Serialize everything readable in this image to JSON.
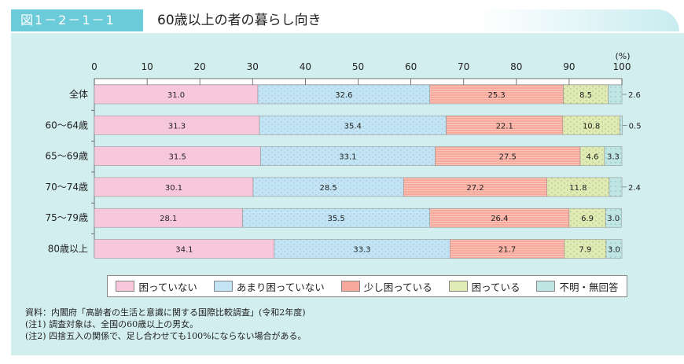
{
  "header": {
    "figure_number": "図1－2－1－1",
    "title": "60歳以上の者の暮らし向き"
  },
  "chart_data": {
    "type": "bar",
    "orientation": "horizontal",
    "stacked": true,
    "unit_label": "(%)",
    "xlim": [
      0,
      100
    ],
    "ticks": [
      "0",
      "10",
      "20",
      "30",
      "40",
      "50",
      "60",
      "70",
      "80",
      "90",
      "100"
    ],
    "categories": [
      "全体",
      "60～64歳",
      "65～69歳",
      "70～74歳",
      "75～79歳",
      "80歳以上"
    ],
    "series": [
      {
        "name": "困っていない",
        "color": "#f7c8dc",
        "values": [
          31.0,
          31.3,
          31.5,
          30.1,
          28.1,
          34.1
        ]
      },
      {
        "name": "あまり困っていない",
        "color": "#c2e4f4",
        "values": [
          32.6,
          35.4,
          33.1,
          28.5,
          35.5,
          33.3
        ]
      },
      {
        "name": "少し困っている",
        "color": "#f7a99c",
        "values": [
          25.3,
          22.1,
          27.5,
          27.2,
          26.4,
          21.7
        ]
      },
      {
        "name": "困っている",
        "color": "#e0eab4",
        "values": [
          8.5,
          10.8,
          4.6,
          11.8,
          6.9,
          7.9
        ]
      },
      {
        "name": "不明・無回答",
        "color": "#bfe5e5",
        "values": [
          2.6,
          0.5,
          3.3,
          2.4,
          3.0,
          3.0
        ]
      }
    ],
    "legend_placement": "bottom"
  },
  "notes": [
    "資料：内閣府「高齢者の生活と意識に関する国際比較調査」(令和2年度)",
    "(注1) 調査対象は、全国の60歳以上の男女。",
    "(注2) 四捨五入の関係で、足し合わせても100%にならない場合がある。"
  ]
}
